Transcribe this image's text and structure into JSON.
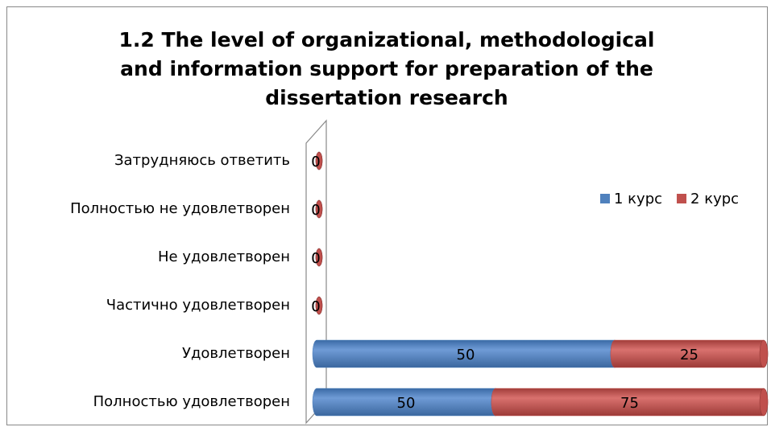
{
  "chart_data": {
    "type": "bar",
    "orientation": "horizontal",
    "stacking": "percent",
    "title": "1.2 The level of organizational, methodological and information support for preparation of the dissertation research",
    "categories": [
      "Затрудняюсь ответить",
      "Полностью не удовлетворен",
      "Не удовлетворен",
      "Частично удовлетворен",
      "Удовлетворен",
      "Полностью удовлетворен"
    ],
    "series": [
      {
        "name": "1 курс",
        "color": "#4f81bd",
        "values": [
          0,
          0,
          0,
          0,
          50,
          50
        ]
      },
      {
        "name": "2 курс",
        "color": "#c0504d",
        "values": [
          0,
          0,
          0,
          0,
          25,
          75
        ]
      }
    ],
    "legend": "right"
  }
}
